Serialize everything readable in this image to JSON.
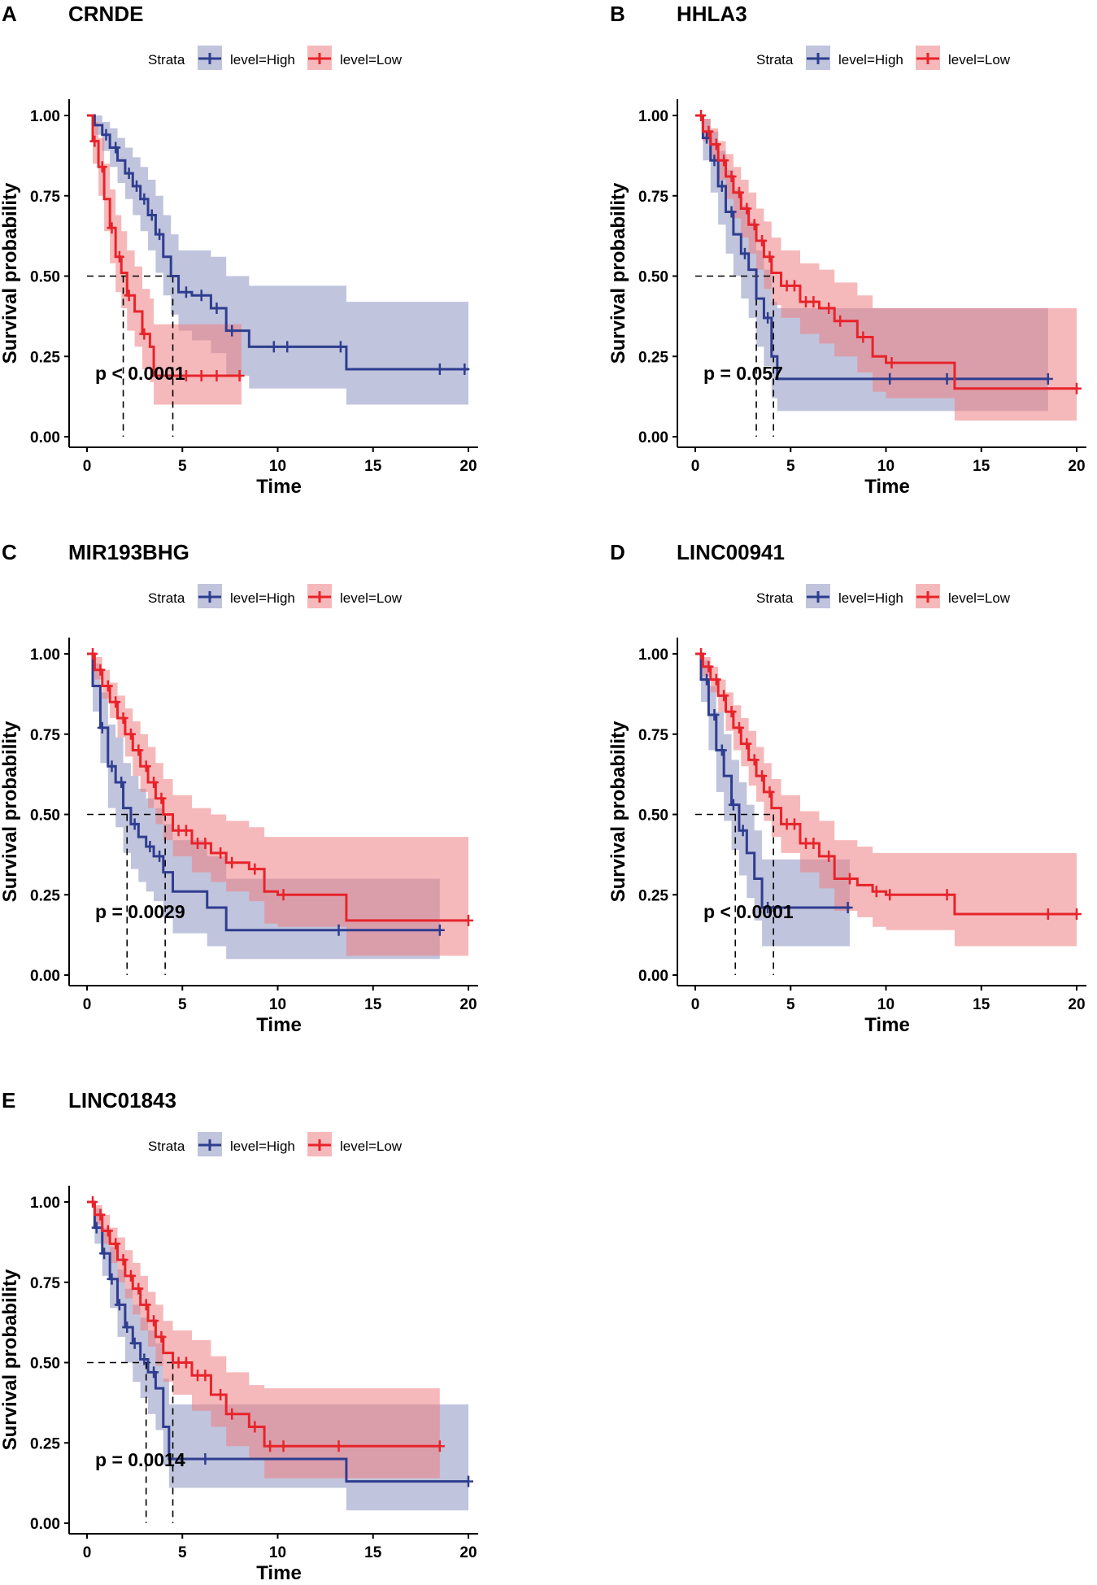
{
  "figure": {
    "panels_count": 5,
    "colors": {
      "high": "#2e3d8f",
      "low": "#e8232a",
      "high_band": "#8d94c0",
      "low_band": "#ef7f83"
    }
  },
  "chart_data": [
    {
      "type": "line",
      "panel_letter": "A",
      "title": "CRNDE",
      "legend_title": "Strata",
      "legend": [
        "level=High",
        "level=Low"
      ],
      "xlabel": "Time",
      "ylabel": "Survival probability",
      "xlim": [
        0,
        20
      ],
      "ylim": [
        0,
        1
      ],
      "xticks": [
        "0",
        "5",
        "10",
        "15",
        "20"
      ],
      "yticks": [
        "0.00",
        "0.25",
        "0.50",
        "0.75",
        "1.00"
      ],
      "pvalue": "p < 0.0001",
      "medians": [
        1.9,
        4.5
      ],
      "series": [
        {
          "name": "level=High",
          "color": "#2e3d8f",
          "x": [
            0,
            0.4,
            0.8,
            1.2,
            1.6,
            2,
            2.4,
            2.8,
            3.2,
            3.6,
            4,
            4.4,
            4.8,
            5.5,
            6.5,
            7.3,
            8.5,
            13.6,
            20
          ],
          "y": [
            1.0,
            0.97,
            0.94,
            0.9,
            0.86,
            0.82,
            0.78,
            0.74,
            0.69,
            0.63,
            0.56,
            0.5,
            0.45,
            0.44,
            0.4,
            0.33,
            0.28,
            0.21,
            0.21
          ],
          "lower": [
            1.0,
            0.94,
            0.89,
            0.84,
            0.79,
            0.74,
            0.69,
            0.64,
            0.58,
            0.51,
            0.44,
            0.38,
            0.33,
            0.3,
            0.26,
            0.19,
            0.15,
            0.1,
            0.1
          ],
          "upper": [
            1.0,
            1.0,
            0.98,
            0.96,
            0.93,
            0.9,
            0.87,
            0.84,
            0.8,
            0.75,
            0.69,
            0.63,
            0.58,
            0.58,
            0.56,
            0.5,
            0.47,
            0.42,
            0.42
          ],
          "censor_x": [
            1,
            1.5,
            2.2,
            2.6,
            3,
            3.4,
            3.8,
            5.2,
            6,
            6.8,
            7.6,
            9.8,
            10.5,
            13.3,
            18.5,
            19.8
          ]
        },
        {
          "name": "level=Low",
          "color": "#e8232a",
          "x": [
            0,
            0.3,
            0.6,
            0.9,
            1.2,
            1.5,
            1.8,
            2.1,
            2.5,
            2.9,
            3.3,
            3.5,
            8.1
          ],
          "y": [
            1.0,
            0.92,
            0.84,
            0.74,
            0.65,
            0.56,
            0.51,
            0.44,
            0.39,
            0.32,
            0.28,
            0.19,
            0.19
          ],
          "lower": [
            1.0,
            0.85,
            0.75,
            0.64,
            0.54,
            0.45,
            0.4,
            0.33,
            0.28,
            0.21,
            0.17,
            0.1,
            0.1
          ],
          "upper": [
            1.0,
            0.98,
            0.93,
            0.85,
            0.77,
            0.69,
            0.64,
            0.58,
            0.53,
            0.46,
            0.43,
            0.35,
            0.35
          ],
          "censor_x": [
            0.4,
            0.8,
            1.3,
            1.7,
            2.2,
            3.0,
            5.2,
            6,
            6.8,
            8
          ]
        }
      ]
    },
    {
      "type": "line",
      "panel_letter": "B",
      "title": "HHLA3",
      "legend_title": "Strata",
      "legend": [
        "level=High",
        "level=Low"
      ],
      "xlabel": "Time",
      "ylabel": "Survival probability",
      "xlim": [
        0,
        20
      ],
      "ylim": [
        0,
        1
      ],
      "xticks": [
        "0",
        "5",
        "10",
        "15",
        "20"
      ],
      "yticks": [
        "0.00",
        "0.25",
        "0.50",
        "0.75",
        "1.00"
      ],
      "pvalue": "p = 0.057",
      "medians": [
        3.2,
        4.1
      ],
      "series": [
        {
          "name": "level=High",
          "color": "#2e3d8f",
          "x": [
            0,
            0.4,
            0.8,
            1.2,
            1.6,
            2,
            2.4,
            2.8,
            3.2,
            3.6,
            4,
            4.3,
            18.5
          ],
          "y": [
            1.0,
            0.93,
            0.86,
            0.78,
            0.7,
            0.63,
            0.57,
            0.52,
            0.43,
            0.37,
            0.25,
            0.18,
            0.18
          ],
          "lower": [
            1.0,
            0.86,
            0.76,
            0.66,
            0.57,
            0.5,
            0.43,
            0.37,
            0.28,
            0.22,
            0.12,
            0.08,
            0.08
          ],
          "upper": [
            1.0,
            0.99,
            0.95,
            0.89,
            0.83,
            0.77,
            0.72,
            0.67,
            0.58,
            0.52,
            0.42,
            0.4,
            0.4
          ],
          "censor_x": [
            0.6,
            1.0,
            1.4,
            1.9,
            2.6,
            3.8,
            10.2,
            13.2,
            18.5
          ]
        },
        {
          "name": "level=Low",
          "color": "#e8232a",
          "x": [
            0,
            0.4,
            0.8,
            1.2,
            1.6,
            2,
            2.4,
            2.8,
            3.2,
            3.6,
            4,
            4.5,
            5.5,
            6.5,
            7.3,
            8.5,
            9.3,
            10,
            13.6,
            20
          ],
          "y": [
            1.0,
            0.95,
            0.91,
            0.86,
            0.81,
            0.76,
            0.71,
            0.66,
            0.61,
            0.56,
            0.51,
            0.47,
            0.42,
            0.4,
            0.36,
            0.31,
            0.25,
            0.23,
            0.15,
            0.15
          ],
          "lower": [
            1.0,
            0.92,
            0.86,
            0.8,
            0.74,
            0.68,
            0.62,
            0.57,
            0.52,
            0.46,
            0.41,
            0.37,
            0.32,
            0.29,
            0.25,
            0.2,
            0.14,
            0.12,
            0.05,
            0.05
          ],
          "upper": [
            1.0,
            0.99,
            0.96,
            0.92,
            0.88,
            0.84,
            0.8,
            0.76,
            0.71,
            0.67,
            0.62,
            0.58,
            0.54,
            0.52,
            0.48,
            0.44,
            0.4,
            0.4,
            0.4,
            0.4
          ],
          "censor_x": [
            0.3,
            0.7,
            1.1,
            1.5,
            1.9,
            2.3,
            2.7,
            3.1,
            3.5,
            3.9,
            4.8,
            5.2,
            5.8,
            6.2,
            7,
            7.6,
            8.8,
            10.3,
            20
          ]
        }
      ]
    },
    {
      "type": "line",
      "panel_letter": "C",
      "title": "MIR193BHG",
      "legend_title": "Strata",
      "legend": [
        "level=High",
        "level=Low"
      ],
      "xlabel": "Time",
      "ylabel": "Survival probability",
      "xlim": [
        0,
        20
      ],
      "ylim": [
        0,
        1
      ],
      "xticks": [
        "0",
        "5",
        "10",
        "15",
        "20"
      ],
      "yticks": [
        "0.00",
        "0.25",
        "0.50",
        "0.75",
        "1.00"
      ],
      "pvalue": "p = 0.0029",
      "medians": [
        2.1,
        4.1
      ],
      "series": [
        {
          "name": "level=High",
          "color": "#2e3d8f",
          "x": [
            0,
            0.3,
            0.7,
            1.1,
            1.5,
            1.9,
            2.3,
            2.7,
            3.1,
            3.5,
            4.0,
            4.5,
            6.3,
            7.3,
            18.5
          ],
          "y": [
            1.0,
            0.9,
            0.77,
            0.65,
            0.6,
            0.52,
            0.47,
            0.43,
            0.4,
            0.37,
            0.32,
            0.26,
            0.21,
            0.14,
            0.14
          ],
          "lower": [
            1.0,
            0.82,
            0.66,
            0.52,
            0.46,
            0.38,
            0.33,
            0.29,
            0.26,
            0.23,
            0.18,
            0.13,
            0.09,
            0.05,
            0.05
          ],
          "upper": [
            1.0,
            0.97,
            0.88,
            0.78,
            0.74,
            0.66,
            0.62,
            0.58,
            0.55,
            0.52,
            0.47,
            0.42,
            0.37,
            0.3,
            0.3
          ],
          "censor_x": [
            0.8,
            1.3,
            1.8,
            2.5,
            3.3,
            3.8,
            13.2,
            18.5
          ]
        },
        {
          "name": "level=Low",
          "color": "#e8232a",
          "x": [
            0,
            0.4,
            0.8,
            1.2,
            1.6,
            2,
            2.4,
            2.8,
            3.2,
            3.6,
            4,
            4.5,
            5.5,
            6.5,
            7.3,
            8.5,
            9.3,
            10,
            13.6,
            20
          ],
          "y": [
            1.0,
            0.95,
            0.9,
            0.85,
            0.8,
            0.75,
            0.7,
            0.65,
            0.6,
            0.55,
            0.5,
            0.45,
            0.41,
            0.38,
            0.35,
            0.33,
            0.26,
            0.25,
            0.17,
            0.17
          ],
          "lower": [
            1.0,
            0.92,
            0.86,
            0.8,
            0.74,
            0.68,
            0.62,
            0.57,
            0.52,
            0.47,
            0.42,
            0.37,
            0.32,
            0.29,
            0.26,
            0.23,
            0.16,
            0.15,
            0.06,
            0.06
          ],
          "upper": [
            1.0,
            0.99,
            0.95,
            0.91,
            0.87,
            0.83,
            0.79,
            0.75,
            0.71,
            0.66,
            0.61,
            0.56,
            0.52,
            0.5,
            0.48,
            0.46,
            0.43,
            0.43,
            0.43,
            0.43
          ],
          "censor_x": [
            0.3,
            0.7,
            1.1,
            1.5,
            1.9,
            2.3,
            2.7,
            3.1,
            3.5,
            3.9,
            4.8,
            5.2,
            5.8,
            6.2,
            7,
            7.6,
            8.8,
            10.3,
            20
          ]
        }
      ]
    },
    {
      "type": "line",
      "panel_letter": "D",
      "title": "LINC00941",
      "legend_title": "Strata",
      "legend": [
        "level=High",
        "level=Low"
      ],
      "xlabel": "Time",
      "ylabel": "Survival probability",
      "xlim": [
        0,
        20
      ],
      "ylim": [
        0,
        1
      ],
      "xticks": [
        "0",
        "5",
        "10",
        "15",
        "20"
      ],
      "yticks": [
        "0.00",
        "0.25",
        "0.50",
        "0.75",
        "1.00"
      ],
      "pvalue": "p < 0.0001",
      "medians": [
        2.1,
        4.1
      ],
      "series": [
        {
          "name": "level=High",
          "color": "#2e3d8f",
          "x": [
            0,
            0.3,
            0.7,
            1.1,
            1.5,
            1.9,
            2.3,
            2.7,
            3.1,
            3.5,
            8.1
          ],
          "y": [
            1.0,
            0.92,
            0.81,
            0.7,
            0.62,
            0.53,
            0.45,
            0.38,
            0.3,
            0.21,
            0.21
          ],
          "lower": [
            1.0,
            0.85,
            0.7,
            0.57,
            0.48,
            0.39,
            0.31,
            0.24,
            0.17,
            0.09,
            0.09
          ],
          "upper": [
            1.0,
            0.98,
            0.9,
            0.82,
            0.75,
            0.67,
            0.6,
            0.53,
            0.45,
            0.36,
            0.36
          ],
          "censor_x": [
            0.6,
            1.0,
            1.4,
            2.0,
            2.5,
            3.8,
            8.0
          ]
        },
        {
          "name": "level=Low",
          "color": "#e8232a",
          "x": [
            0,
            0.4,
            0.8,
            1.2,
            1.6,
            2,
            2.4,
            2.8,
            3.2,
            3.6,
            4,
            4.5,
            5.5,
            6.5,
            7.3,
            8.5,
            9.3,
            10,
            13.6,
            20
          ],
          "y": [
            1.0,
            0.96,
            0.92,
            0.87,
            0.82,
            0.77,
            0.72,
            0.67,
            0.62,
            0.57,
            0.52,
            0.47,
            0.41,
            0.37,
            0.3,
            0.28,
            0.26,
            0.25,
            0.19,
            0.19
          ],
          "lower": [
            1.0,
            0.93,
            0.88,
            0.82,
            0.76,
            0.7,
            0.65,
            0.59,
            0.54,
            0.48,
            0.43,
            0.38,
            0.32,
            0.27,
            0.2,
            0.18,
            0.15,
            0.14,
            0.09,
            0.09
          ],
          "upper": [
            1.0,
            0.99,
            0.96,
            0.92,
            0.88,
            0.84,
            0.8,
            0.76,
            0.71,
            0.66,
            0.61,
            0.56,
            0.51,
            0.48,
            0.42,
            0.4,
            0.38,
            0.38,
            0.38,
            0.38
          ],
          "censor_x": [
            0.3,
            0.7,
            1.1,
            1.5,
            1.9,
            2.3,
            2.7,
            3.1,
            3.5,
            3.9,
            4.8,
            5.2,
            5.8,
            6.2,
            7,
            8.1,
            9.5,
            10.2,
            13.2,
            18.5,
            20
          ]
        }
      ]
    },
    {
      "type": "line",
      "panel_letter": "E",
      "title": "LINC01843",
      "legend_title": "Strata",
      "legend": [
        "level=High",
        "level=Low"
      ],
      "xlabel": "Time",
      "ylabel": "Survival probability",
      "xlim": [
        0,
        20
      ],
      "ylim": [
        0,
        1
      ],
      "xticks": [
        "0",
        "5",
        "10",
        "15",
        "20"
      ],
      "yticks": [
        "0.00",
        "0.25",
        "0.50",
        "0.75",
        "1.00"
      ],
      "pvalue": "p = 0.0014",
      "medians": [
        3.1,
        4.5
      ],
      "series": [
        {
          "name": "level=High",
          "color": "#2e3d8f",
          "x": [
            0,
            0.4,
            0.8,
            1.2,
            1.6,
            2,
            2.4,
            2.8,
            3.2,
            3.6,
            4.0,
            4.3,
            13.6,
            20
          ],
          "y": [
            1.0,
            0.92,
            0.84,
            0.76,
            0.68,
            0.61,
            0.56,
            0.51,
            0.47,
            0.42,
            0.3,
            0.2,
            0.13,
            0.13
          ],
          "lower": [
            1.0,
            0.87,
            0.77,
            0.67,
            0.58,
            0.5,
            0.44,
            0.39,
            0.34,
            0.29,
            0.18,
            0.11,
            0.04,
            0.04
          ],
          "upper": [
            1.0,
            0.98,
            0.92,
            0.86,
            0.79,
            0.73,
            0.68,
            0.64,
            0.6,
            0.56,
            0.45,
            0.37,
            0.37,
            0.37
          ],
          "censor_x": [
            0.5,
            0.9,
            1.3,
            1.7,
            2.1,
            2.5,
            3.0,
            3.5,
            5.0,
            6.2,
            20
          ]
        },
        {
          "name": "level=Low",
          "color": "#e8232a",
          "x": [
            0,
            0.4,
            0.8,
            1.2,
            1.6,
            2,
            2.4,
            2.8,
            3.2,
            3.6,
            4,
            4.5,
            5.5,
            6.5,
            7.3,
            8.5,
            9.3,
            18.5
          ],
          "y": [
            1.0,
            0.96,
            0.91,
            0.87,
            0.82,
            0.77,
            0.73,
            0.68,
            0.63,
            0.58,
            0.53,
            0.5,
            0.46,
            0.4,
            0.34,
            0.3,
            0.24,
            0.24
          ],
          "lower": [
            1.0,
            0.93,
            0.87,
            0.81,
            0.75,
            0.7,
            0.65,
            0.6,
            0.55,
            0.49,
            0.44,
            0.4,
            0.35,
            0.3,
            0.24,
            0.2,
            0.14,
            0.14
          ],
          "upper": [
            1.0,
            0.99,
            0.96,
            0.92,
            0.89,
            0.85,
            0.81,
            0.77,
            0.72,
            0.68,
            0.63,
            0.6,
            0.57,
            0.52,
            0.47,
            0.43,
            0.42,
            0.42
          ],
          "censor_x": [
            0.3,
            0.7,
            1.1,
            1.5,
            1.9,
            2.3,
            2.7,
            3.1,
            3.5,
            3.9,
            4.8,
            5.2,
            5.8,
            6.2,
            7,
            7.6,
            8.8,
            9.6,
            10.3,
            13.2,
            18.5
          ]
        }
      ]
    }
  ]
}
